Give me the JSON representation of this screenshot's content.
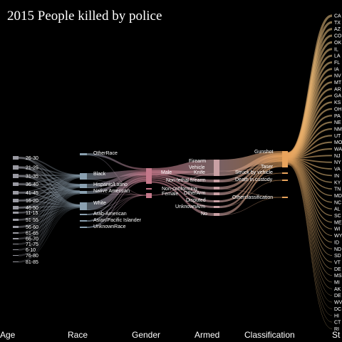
{
  "title": "2015 People killed by police",
  "columns": [
    "Age",
    "Race",
    "Gender",
    "Armed",
    "Classification",
    "St"
  ],
  "age_groups": [
    "26-30",
    "21-25",
    "31-35",
    "36-40",
    "41-45",
    "16-20",
    "46-50",
    "11-15",
    "51-55",
    "56-60",
    "61-65",
    "66-70",
    "71-75",
    "6-10",
    "76-80",
    "81-85"
  ],
  "races": [
    "OtherRace",
    "Black",
    "Hispanic/Latino",
    "Native American",
    "White",
    "Arab-American",
    "Asian/Pacific Islander",
    "UnknownRace"
  ],
  "genders": [
    "Male",
    "Non-conforming",
    "Female"
  ],
  "armed": [
    "Firearm",
    "Knife",
    "Non-lethal firearm",
    "Vehicle",
    "OtherArm",
    "Disputed",
    "UnknownArm",
    "No"
  ],
  "classifications": [
    "Gunshot",
    "Taser",
    "Struck by vehicle",
    "Death in custody",
    "Otherclassification"
  ],
  "states": [
    "CA",
    "TX",
    "AZ",
    "CO",
    "OK",
    "IL",
    "LA",
    "FL",
    "IA",
    "NV",
    "MT",
    "AR",
    "GA",
    "KS",
    "OH",
    "PA",
    "NE",
    "NM",
    "UT",
    "MO",
    "WA",
    "NJ",
    "NY",
    "VA",
    "IN",
    "KY",
    "TN",
    "MD",
    "NC",
    "AL",
    "SC",
    "ME",
    "WI",
    "WY",
    "ID",
    "ND",
    "SD",
    "VT",
    "DE",
    "MS",
    "MI",
    "AK",
    "DE",
    "WV",
    "DC",
    "HI",
    "CT",
    "RI"
  ],
  "colors": {
    "background": "#000000",
    "age": "#9a9aa2",
    "race": "#8aa0b0",
    "gender": "#c4788a",
    "armed": "#c9a0a4",
    "gunshot": "#e8a35c"
  }
}
